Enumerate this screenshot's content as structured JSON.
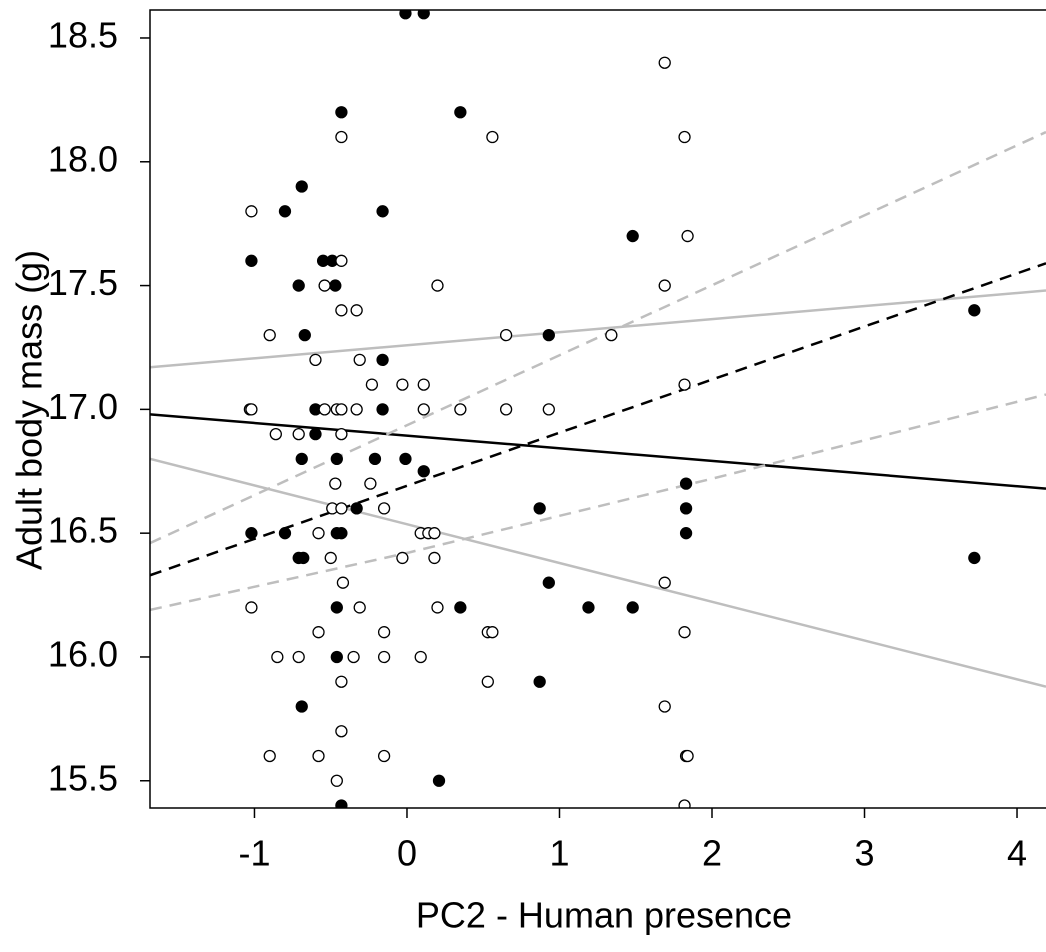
{
  "chart_data": {
    "type": "scatter",
    "xlabel": "PC2 - Human presence",
    "ylabel": "Adult body mass (g)",
    "xlim": [
      -1.685,
      4.19
    ],
    "ylim": [
      15.39,
      18.613
    ],
    "xticks": [
      -1,
      0,
      1,
      2,
      3,
      4
    ],
    "yticks": [
      15.5,
      {
        "value": 16,
        "label": "16.0"
      },
      16.5,
      {
        "value": 17,
        "label": "17.0"
      },
      17.5,
      {
        "value": 18,
        "label": "18.0"
      },
      18.5
    ],
    "series": [
      {
        "kind": "points",
        "marker": "filled",
        "color": "#000000",
        "x": [
          -0.01,
          0.11,
          -0.43,
          0.35,
          -0.69,
          -0.8,
          -0.16,
          -1.02,
          -0.55,
          -0.49,
          -0.71,
          -0.47,
          -0.67,
          0.93,
          -0.16,
          -0.6,
          -0.16,
          -0.6,
          -0.69,
          -0.46,
          -0.21,
          -0.01,
          0.11,
          -0.33,
          0.87,
          -1.02,
          -0.8,
          -0.46,
          -0.43,
          -0.71,
          -0.68,
          0.93,
          -0.46,
          0.35,
          1.19,
          1.48,
          -0.46,
          0.87,
          -0.69,
          0.21,
          -0.43,
          1.48,
          3.72,
          3.72,
          1.83,
          1.83,
          1.83
        ],
        "values": [
          18.6,
          18.6,
          18.2,
          18.2,
          17.9,
          17.8,
          17.8,
          17.6,
          17.6,
          17.6,
          17.5,
          17.5,
          17.3,
          17.3,
          17.2,
          17.0,
          17.0,
          16.9,
          16.8,
          16.8,
          16.8,
          16.8,
          16.75,
          16.6,
          16.6,
          16.5,
          16.5,
          16.5,
          16.5,
          16.4,
          16.4,
          16.3,
          16.2,
          16.2,
          16.2,
          16.2,
          16.0,
          15.9,
          15.8,
          15.5,
          15.4,
          17.7,
          17.4,
          16.4,
          16.7,
          16.6,
          16.5
        ]
      },
      {
        "kind": "points",
        "marker": "open",
        "color": "#000000",
        "x": [
          1.69,
          -0.43,
          0.56,
          1.82,
          -1.02,
          1.84,
          -0.43,
          -0.54,
          0.2,
          1.69,
          -0.43,
          -0.33,
          -0.9,
          0.65,
          1.34,
          -0.6,
          -0.31,
          -0.23,
          -0.03,
          0.11,
          1.82,
          -1.03,
          -1.02,
          -0.54,
          -0.46,
          -0.43,
          -0.33,
          0.11,
          0.35,
          0.65,
          0.93,
          -0.86,
          -0.71,
          -0.43,
          -0.47,
          -0.24,
          -0.49,
          -0.43,
          -0.15,
          -0.58,
          0.09,
          0.14,
          0.18,
          -0.5,
          -0.03,
          0.18,
          -0.42,
          1.69,
          -1.02,
          -0.31,
          0.2,
          -0.58,
          -0.15,
          0.53,
          0.56,
          1.82,
          -0.85,
          -0.71,
          -0.35,
          -0.15,
          0.09,
          -0.43,
          0.53,
          1.69,
          -0.43,
          -0.9,
          -0.58,
          -0.15,
          1.83,
          1.84,
          -0.46,
          1.82
        ],
        "values": [
          18.4,
          18.1,
          18.1,
          18.1,
          17.8,
          17.7,
          17.6,
          17.5,
          17.5,
          17.5,
          17.4,
          17.4,
          17.3,
          17.3,
          17.3,
          17.2,
          17.2,
          17.1,
          17.1,
          17.1,
          17.1,
          17.0,
          17.0,
          17.0,
          17.0,
          17.0,
          17.0,
          17.0,
          17.0,
          17.0,
          17.0,
          16.9,
          16.9,
          16.9,
          16.7,
          16.7,
          16.6,
          16.6,
          16.6,
          16.5,
          16.5,
          16.5,
          16.5,
          16.4,
          16.4,
          16.4,
          16.3,
          16.3,
          16.2,
          16.2,
          16.2,
          16.1,
          16.1,
          16.1,
          16.1,
          16.1,
          16.0,
          16.0,
          16.0,
          16.0,
          16.0,
          15.9,
          15.9,
          15.8,
          15.7,
          15.6,
          15.6,
          15.6,
          15.6,
          15.6,
          15.5,
          15.4
        ]
      },
      {
        "kind": "line",
        "dash": false,
        "color": "#000000",
        "x": [
          -1.685,
          4.19
        ],
        "values": [
          16.98,
          16.68
        ]
      },
      {
        "kind": "line",
        "dash": false,
        "color": "#bebebe",
        "x": [
          -1.685,
          4.19
        ],
        "values": [
          17.17,
          17.48
        ]
      },
      {
        "kind": "line",
        "dash": false,
        "color": "#bebebe",
        "x": [
          -1.685,
          4.19
        ],
        "values": [
          16.8,
          15.88
        ]
      },
      {
        "kind": "line",
        "dash": true,
        "color": "#000000",
        "x": [
          -1.685,
          4.19
        ],
        "values": [
          16.33,
          17.59
        ]
      },
      {
        "kind": "line",
        "dash": true,
        "color": "#bebebe",
        "x": [
          -1.685,
          4.19
        ],
        "values": [
          16.46,
          18.12
        ]
      },
      {
        "kind": "line",
        "dash": true,
        "color": "#bebebe",
        "x": [
          -1.685,
          0,
          1,
          2,
          4.19
        ],
        "values": [
          16.19,
          16.42,
          16.57,
          16.72,
          17.06
        ]
      }
    ]
  }
}
